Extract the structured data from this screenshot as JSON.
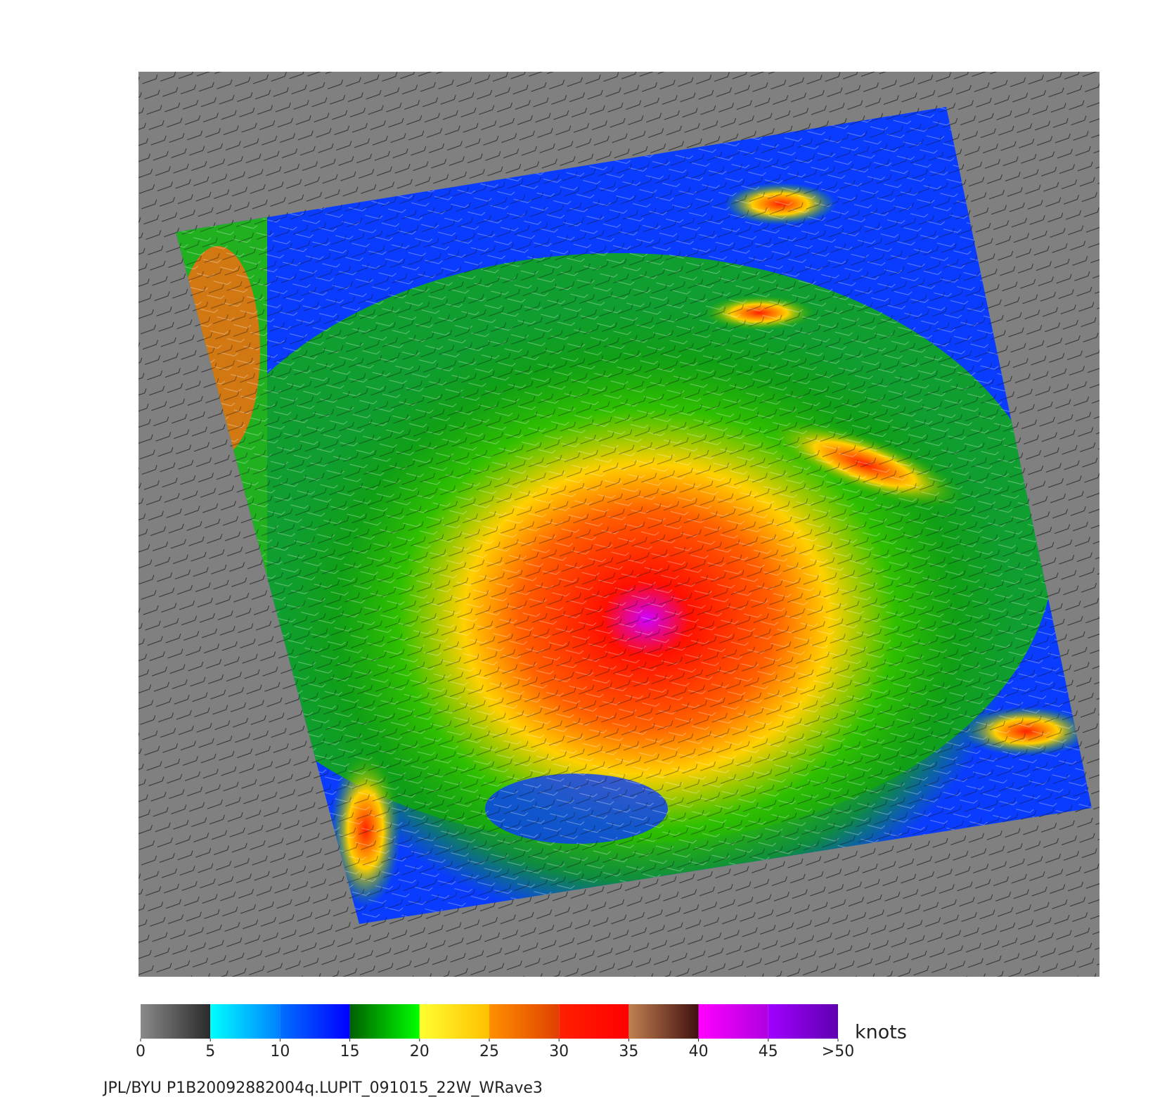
{
  "map": {
    "caption": "JPL/BYU  P1B20092882004q.LUPIT_091015_22W_WRave3",
    "colorbar": {
      "unit": "knots",
      "range": [
        0,
        50
      ],
      "ticks": [
        0,
        5,
        10,
        15,
        20,
        25,
        30,
        35,
        40,
        45,
        {
          "value": 50,
          "label": ">50"
        }
      ],
      "colors": [
        [
          "#8a8a8a",
          "#2a2a2a"
        ],
        [
          "#00ffff",
          "#0080ff"
        ],
        [
          "#0070ff",
          "#0000ff"
        ],
        [
          "#006000",
          "#00ff00"
        ],
        [
          "#ffff30",
          "#ffc000"
        ],
        [
          "#ff9000",
          "#e04000"
        ],
        [
          "#ff2000",
          "#ff0000"
        ],
        [
          "#c08050",
          "#401010"
        ],
        [
          "#ff00ff",
          "#b000e0"
        ],
        [
          "#a000ff",
          "#6000b0"
        ]
      ]
    }
  }
}
